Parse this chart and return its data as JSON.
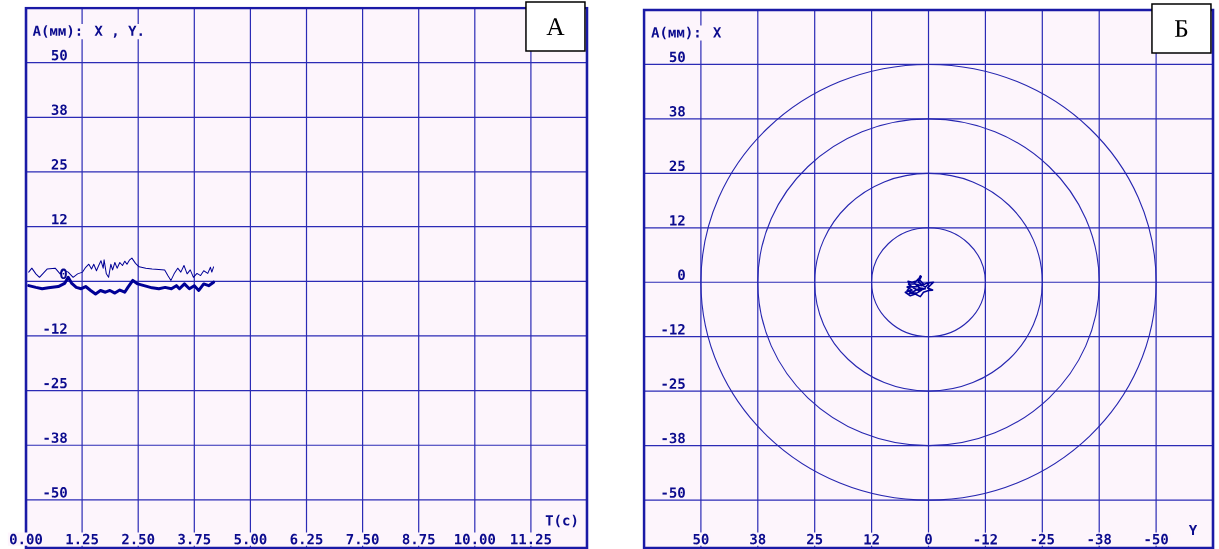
{
  "chart_data": [
    {
      "type": "line",
      "title": "А",
      "xlabel": "T(с)",
      "ylabel": "A(мм): X , Y.",
      "xlim": [
        0,
        12.5
      ],
      "xticks": [
        {
          "value": 0,
          "label": "0.00"
        },
        1.25,
        {
          "value": 2.5,
          "label": "2.50"
        },
        3.75,
        {
          "value": 5,
          "label": "5.00"
        },
        6.25,
        {
          "value": 7.5,
          "label": "7.50"
        },
        8.75,
        {
          "value": 10,
          "label": "10.00"
        },
        11.25
      ],
      "ylim": [
        -61,
        62.5
      ],
      "yticks": [
        50,
        {
          "value": 37.5,
          "label": "38"
        },
        25,
        {
          "value": 12.5,
          "label": "12"
        },
        0,
        {
          "value": -12.5,
          "label": "-12"
        },
        -25,
        {
          "value": -37.5,
          "label": "-38"
        },
        -50
      ],
      "grid": true,
      "line_style": "solid",
      "series": [
        {
          "color": "#000096",
          "x": [
            0.06,
            0.13,
            0.22,
            0.3,
            0.47,
            0.65,
            0.76,
            0.83,
            0.94,
            1.05,
            1.15,
            1.26,
            1.33,
            1.4,
            1.46,
            1.51,
            1.57,
            1.62,
            1.67,
            1.72,
            1.74,
            1.79,
            1.84,
            1.89,
            1.93,
            1.98,
            2.03,
            2.09,
            2.15,
            2.2,
            2.25,
            2.31,
            2.36,
            2.44,
            2.52,
            2.67,
            2.81,
            2.96,
            3.09,
            3.16,
            3.23,
            3.3,
            3.38,
            3.45,
            3.52,
            3.59,
            3.66,
            3.73,
            3.81,
            3.89,
            3.96,
            4.05,
            4.11,
            4.14,
            4.18
          ],
          "values": [
            2.1,
            3.0,
            1.7,
            0.9,
            2.8,
            3.0,
            1.7,
            2.6,
            2.1,
            0.9,
            1.7,
            2.1,
            3.2,
            3.9,
            2.8,
            3.9,
            2.4,
            3.6,
            4.7,
            3.0,
            4.9,
            1.7,
            0.9,
            3.9,
            2.6,
            4.3,
            3.0,
            4.3,
            3.6,
            4.6,
            3.9,
            4.9,
            5.3,
            4.1,
            3.3,
            3.0,
            2.8,
            2.7,
            2.6,
            1.3,
            0.2,
            1.7,
            3.0,
            2.1,
            3.6,
            1.7,
            2.6,
            0.9,
            1.8,
            1.3,
            2.4,
            1.8,
            3.2,
            2.1,
            3.3
          ]
        },
        {
          "color": "#000096",
          "x": [
            0.06,
            0.22,
            0.36,
            0.5,
            0.72,
            0.86,
            0.94,
            1.02,
            1.12,
            1.23,
            1.33,
            1.44,
            1.55,
            1.66,
            1.77,
            1.87,
            1.98,
            2.09,
            2.2,
            2.27,
            2.38,
            2.49,
            2.63,
            2.81,
            2.96,
            3.1,
            3.24,
            3.35,
            3.42,
            3.53,
            3.64,
            3.75,
            3.85,
            3.96,
            4.07,
            4.18
          ],
          "values": [
            -1.0,
            -1.4,
            -1.7,
            -1.5,
            -1.2,
            -0.5,
            0.9,
            -0.5,
            -1.4,
            -1.7,
            -1.2,
            -2.1,
            -2.9,
            -2.1,
            -2.5,
            -2.1,
            -2.7,
            -2.0,
            -2.5,
            -1.4,
            0.2,
            -0.6,
            -1.0,
            -1.5,
            -1.7,
            -1.4,
            -1.7,
            -1.0,
            -1.7,
            -0.6,
            -1.7,
            -1.0,
            -2.1,
            -0.6,
            -1.0,
            -0.2
          ]
        }
      ]
    },
    {
      "type": "line",
      "title": "Б",
      "xlabel": "Y",
      "ylabel": "A(мм): X",
      "xlim": [
        62.5,
        -62.5
      ],
      "xticks": [
        50,
        {
          "value": 37.5,
          "label": "38"
        },
        25,
        {
          "value": 12.5,
          "label": "12"
        },
        0,
        {
          "value": -12.5,
          "label": "-12"
        },
        -25,
        {
          "value": -37.5,
          "label": "-38"
        },
        -50
      ],
      "ylim": [
        -61,
        62.5
      ],
      "yticks": [
        50,
        {
          "value": 37.5,
          "label": "38"
        },
        25,
        {
          "value": 12.5,
          "label": "12"
        },
        0,
        {
          "value": -12.5,
          "label": "-12"
        },
        -25,
        {
          "value": -37.5,
          "label": "-38"
        },
        -50
      ],
      "grid": true,
      "line_style": "solid",
      "series": [
        {
          "color": "#000096",
          "x": [
            0,
            0.7,
            2.2,
            1.6,
            1.8,
            2.3,
            3.6,
            4.5,
            4.0,
            4.7,
            3.6,
            5.1,
            4.0,
            2.9,
            1.8,
            1.1,
            0,
            -0.9,
            0.2,
            -0.7,
            -1.1,
            0.4,
            1.5,
            2.9,
            4.4,
            3.3,
            2.2,
            0.7,
            1.8,
            3.6,
            4.7,
            4.0,
            2.6,
            1.1,
            2.2,
            3.1,
            1.5,
            2.6,
            4.2
          ],
          "values": [
            -0.4,
            -1.1,
            0,
            1.3,
            1.5,
            0.4,
            0,
            0.2,
            -0.8,
            -1.1,
            -1.8,
            -2.3,
            -3.1,
            -2.7,
            -3.3,
            -2.3,
            -1.9,
            -1.8,
            -1.3,
            -0.4,
            0,
            -0.2,
            -0.8,
            -0.4,
            -0.4,
            -1.3,
            -1.9,
            -1.5,
            -1.3,
            -2.3,
            -1.9,
            -1.1,
            -1.0,
            -0.4,
            0.8,
            -0.2,
            -1.8,
            -2.5,
            -2.5
          ]
        }
      ]
    }
  ]
}
